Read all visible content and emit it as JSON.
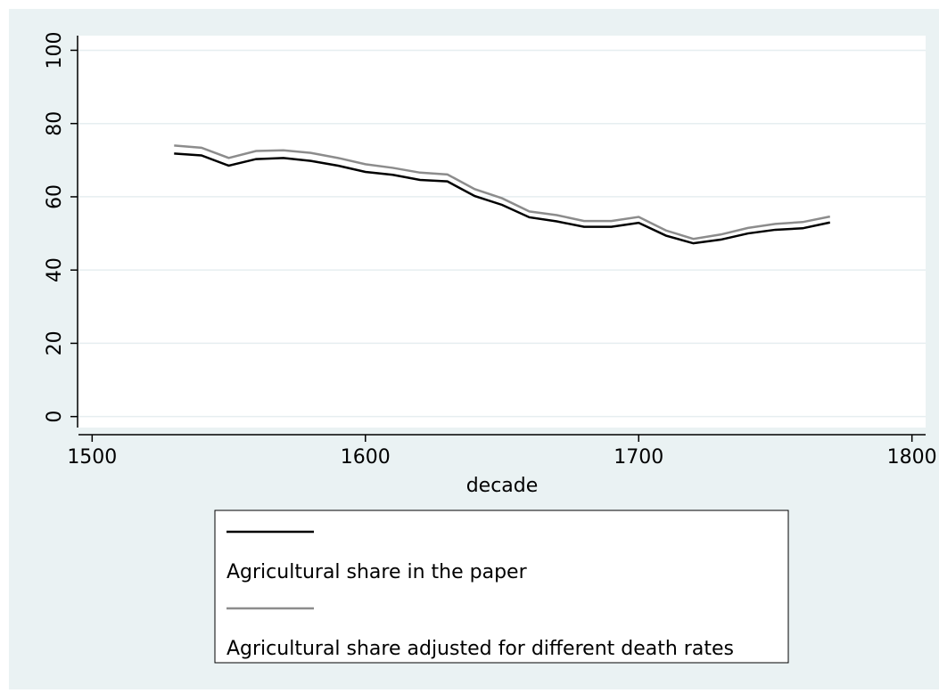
{
  "chart_data": {
    "type": "line",
    "x_label": "decade",
    "x": [
      1530,
      1540,
      1550,
      1560,
      1570,
      1580,
      1590,
      1600,
      1610,
      1620,
      1630,
      1640,
      1650,
      1660,
      1670,
      1680,
      1690,
      1700,
      1710,
      1720,
      1730,
      1740,
      1750,
      1760,
      1770
    ],
    "series": [
      {
        "name": "Agricultural share in the paper",
        "color": "#000000",
        "values": [
          71.8,
          71.3,
          68.5,
          70.3,
          70.6,
          69.8,
          68.5,
          66.8,
          66.0,
          64.6,
          64.2,
          60.2,
          57.8,
          54.4,
          53.3,
          51.8,
          51.8,
          52.9,
          49.4,
          47.3,
          48.3,
          50.0,
          51.0,
          51.4,
          53.0
        ]
      },
      {
        "name": "Agricultural share adjusted for different death rates",
        "color": "#8c8c8c",
        "values": [
          74.0,
          73.4,
          70.6,
          72.5,
          72.7,
          72.0,
          70.6,
          68.9,
          67.9,
          66.6,
          66.1,
          62.1,
          59.6,
          56.0,
          55.0,
          53.4,
          53.4,
          54.5,
          50.8,
          48.5,
          49.7,
          51.5,
          52.6,
          53.1,
          54.6
        ]
      }
    ],
    "xlim": [
      1495,
      1805
    ],
    "xticks": [
      1500,
      1600,
      1700,
      1800
    ],
    "ylim": [
      -3,
      104
    ],
    "yticks": [
      0,
      20,
      40,
      60,
      80,
      100
    ],
    "grid": true,
    "legend_position": "bottom"
  }
}
